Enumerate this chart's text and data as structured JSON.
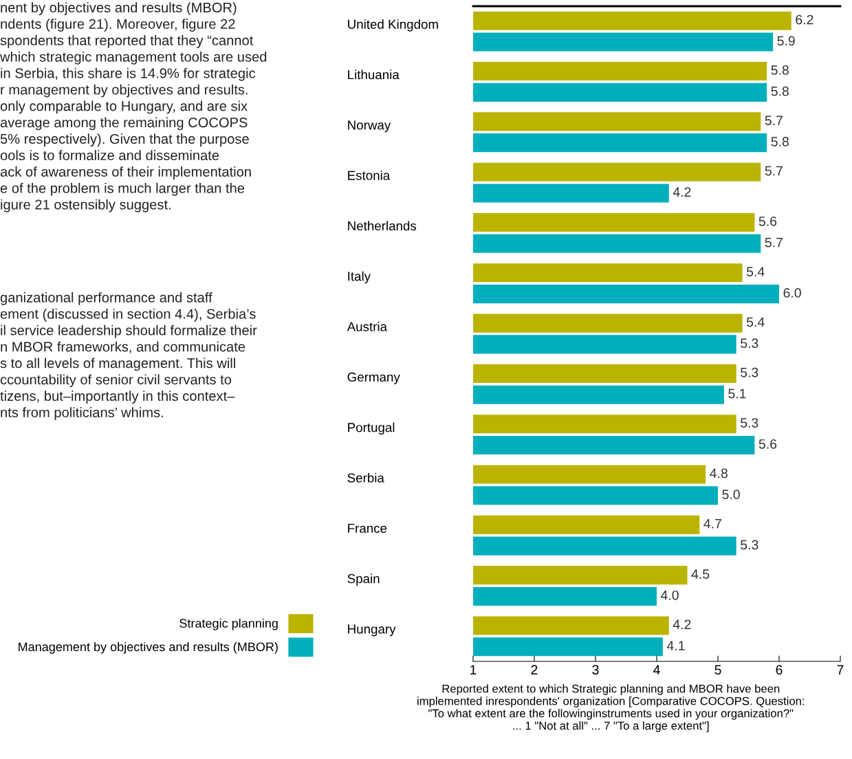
{
  "chart_data": {
    "type": "bar",
    "orientation": "horizontal",
    "categories": [
      "United Kingdom",
      "Lithuania",
      "Norway",
      "Estonia",
      "Netherlands",
      "Italy",
      "Austria",
      "Germany",
      "Portugal",
      "Serbia",
      "France",
      "Spain",
      "Hungary"
    ],
    "series": [
      {
        "name": "Strategic planning",
        "color": "#bab400",
        "values": [
          6.2,
          5.8,
          5.7,
          5.7,
          5.6,
          5.4,
          5.4,
          5.3,
          5.3,
          4.8,
          4.7,
          4.5,
          4.2
        ],
        "value_labels": [
          "6.2",
          "5.8",
          "5.7",
          "5.7",
          "5.6",
          "5.4",
          "5.4",
          "5.3",
          "5.3",
          "4.8",
          "4.7",
          "4.5",
          "4.2"
        ]
      },
      {
        "name": "Management by objectives and results (MBOR)",
        "color": "#00afbb",
        "values": [
          5.9,
          5.8,
          5.8,
          4.2,
          5.7,
          6.0,
          5.3,
          5.1,
          5.6,
          5.0,
          5.3,
          4.0,
          4.1
        ],
        "value_labels": [
          "5.9",
          "5.8",
          "5.8",
          "4.2",
          "5.7",
          "6.0",
          "5.3",
          "5.1",
          "5.6",
          "5.0",
          "5.3",
          "4.0",
          "4.1"
        ]
      }
    ],
    "xlim": [
      1,
      7
    ],
    "xticks": [
      1,
      2,
      3,
      4,
      5,
      6,
      7
    ],
    "xlabel": "Reported extent to which Strategic planning and MBOR have been\nimplemented inrespondents' organization [Comparative COCOPS. Question:\n\"To what extent are the followinginstruments used in your organization?\"\n... 1 \"Not at all\" ... 7 \"To a large extent\"]",
    "legend": "left",
    "grid": false,
    "annotations": [
      "nent by objectives and results (MBOR)\nndents (figure 21). Moreover, figure 22\nspondents that reported that they “cannot\nwhich strategic management tools are used\nin Serbia, this share is 14.9% for strategic\nr management by objectives and results.\nonly comparable to Hungary, and are six\naverage among the remaining COCOPS\n5% respectively). Given that the purpose\nools is to formalize and disseminate\nack of awareness of their implementation\ne of the problem is much larger than the\nigure 21 ostensibly suggest.",
      "ganizational performance and staff\nement (discussed in section 4.4), Serbia’s\nil service leadership should formalize their\nn MBOR frameworks, and communicate\ns to all levels of management. This will\nccountability of senior civil servants to\ntizens, but–importantly in this context–\nnts from politicians’ whims."
    ]
  }
}
